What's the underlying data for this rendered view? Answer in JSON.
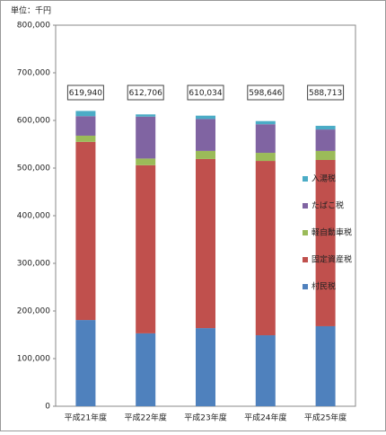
{
  "chart_data": {
    "type": "stacked_bar",
    "unit_label": "単位：千円",
    "categories": [
      "平成21年度",
      "平成22年度",
      "平成23年度",
      "平成24年度",
      "平成25年度"
    ],
    "series": [
      {
        "name": "村民税",
        "color": "#4f81bd",
        "values": [
          181000,
          153000,
          164000,
          149000,
          168000
        ]
      },
      {
        "name": "固定資産税",
        "color": "#c0504d",
        "values": [
          374000,
          353000,
          355000,
          366000,
          349000
        ]
      },
      {
        "name": "軽自動車税",
        "color": "#9bbb59",
        "values": [
          13000,
          14000,
          17000,
          17000,
          19000
        ]
      },
      {
        "name": "たばこ税",
        "color": "#8064a2",
        "values": [
          41000,
          88000,
          67000,
          60000,
          45000
        ]
      },
      {
        "name": "入湯税",
        "color": "#4bacc6",
        "values": [
          10940,
          4706,
          7034,
          6646,
          7713
        ]
      }
    ],
    "totals": {
      "values": [
        619940,
        612706,
        610034,
        598646,
        588713
      ],
      "value_labels": [
        "619,940",
        "612,706",
        "610,034",
        "598,646",
        "588,713"
      ]
    },
    "ylim": [
      0,
      800000
    ],
    "yticks": [
      0,
      {
        "value": 100000,
        "label": "100,000"
      },
      {
        "value": 200000,
        "label": "200,000"
      },
      {
        "value": 300000,
        "label": "300,000"
      },
      {
        "value": 400000,
        "label": "400,000"
      },
      {
        "value": 500000,
        "label": "500,000"
      },
      {
        "value": 600000,
        "label": "600,000"
      },
      {
        "value": 700000,
        "label": "700,000"
      },
      {
        "value": 800000,
        "label": "800,000"
      }
    ]
  }
}
